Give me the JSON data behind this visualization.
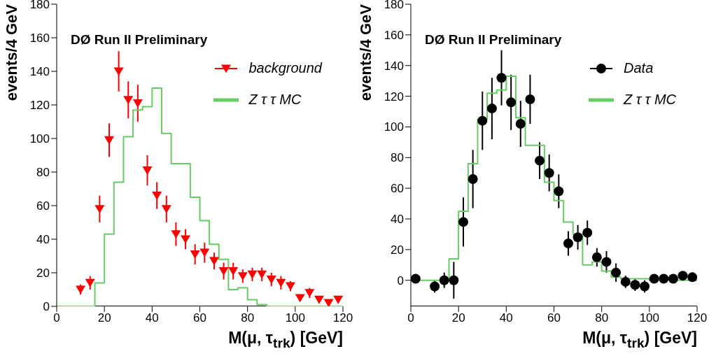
{
  "chart_data": [
    {
      "type": "scatter",
      "annotations": [
        "DØ Run II Preliminary"
      ],
      "xlabel": "M(μ, τ$_{trk}$) [GeV]",
      "ylabel": "events/4 GeV",
      "xlim": [
        0,
        120
      ],
      "xticks": [
        0,
        20,
        40,
        60,
        80,
        100,
        120
      ],
      "ylim": [
        0,
        180
      ],
      "yticks": [
        0,
        20,
        40,
        60,
        80,
        100,
        120,
        140,
        160,
        180
      ],
      "legend": "top right",
      "series": [
        {
          "name": "background",
          "type": "scatter",
          "marker": "triangle",
          "color": "#ff0000",
          "x": [
            10,
            14,
            18,
            22,
            26,
            30,
            34,
            38,
            42,
            46,
            50,
            54,
            58,
            62,
            66,
            70,
            74,
            78,
            82,
            86,
            90,
            94,
            98,
            102,
            106,
            110,
            114,
            118
          ],
          "values": [
            10,
            14,
            58,
            99,
            140,
            123,
            121,
            81,
            66,
            58,
            43,
            40,
            31,
            32,
            27,
            21,
            21,
            18,
            19,
            19,
            16,
            14,
            12,
            5,
            8,
            4,
            2,
            4
          ],
          "errors": [
            3,
            4,
            8,
            10,
            12,
            11,
            11,
            9,
            8,
            8,
            7,
            6,
            6,
            6,
            5,
            5,
            5,
            4,
            4,
            4,
            4,
            4,
            3,
            2,
            3,
            2,
            2,
            2
          ]
        },
        {
          "name": "Z τ τ MC",
          "type": "step",
          "line_style": "solid",
          "color": "#66cc66",
          "x": [
            0,
            4,
            8,
            12,
            16,
            20,
            24,
            28,
            32,
            36,
            40,
            44,
            48,
            52,
            56,
            60,
            64,
            68,
            72,
            76,
            80,
            84,
            88,
            92,
            96,
            100,
            104,
            108,
            112,
            116,
            120
          ],
          "values": [
            0,
            0,
            0,
            0,
            14,
            43,
            74,
            101,
            117,
            119,
            130,
            103,
            85,
            85,
            65,
            51,
            37,
            28,
            10,
            11,
            4,
            1,
            0,
            0,
            0,
            0,
            0,
            0,
            0,
            0,
            0
          ]
        }
      ]
    },
    {
      "type": "scatter",
      "annotations": [
        "DØ Run II Preliminary"
      ],
      "xlabel": "M(μ, τ$_{trk}$) [GeV]",
      "ylabel": "events/4 GeV",
      "xlim": [
        0,
        120
      ],
      "xticks": [
        0,
        20,
        40,
        60,
        80,
        100,
        120
      ],
      "ylim": [
        -17,
        180
      ],
      "yticks": [
        0,
        20,
        40,
        60,
        80,
        100,
        120,
        140,
        160,
        180
      ],
      "legend": "top right",
      "series": [
        {
          "name": "Data",
          "type": "scatter",
          "marker": "circle",
          "color": "#000000",
          "x": [
            2,
            10,
            14,
            18,
            22,
            26,
            30,
            34,
            38,
            42,
            46,
            50,
            54,
            58,
            62,
            66,
            70,
            74,
            78,
            82,
            86,
            90,
            94,
            98,
            102,
            106,
            110,
            114,
            118
          ],
          "values": [
            1,
            -4,
            0,
            0,
            38,
            66,
            104,
            112,
            132,
            116,
            102,
            118,
            78,
            70,
            58,
            24,
            28,
            31,
            15,
            12,
            5,
            -1,
            -3,
            -4,
            1,
            1,
            1,
            3,
            2
          ],
          "errors": [
            3,
            4,
            5,
            12,
            16,
            19,
            19,
            20,
            18,
            18,
            15,
            16,
            12,
            12,
            11,
            8,
            8,
            8,
            6,
            7,
            6,
            4,
            4,
            4,
            2,
            2,
            2,
            2,
            2
          ]
        },
        {
          "name": "Z τ τ MC",
          "type": "step",
          "line_style": "solid",
          "color": "#66cc66",
          "x": [
            0,
            4,
            8,
            12,
            16,
            20,
            24,
            28,
            32,
            36,
            40,
            44,
            48,
            52,
            56,
            60,
            64,
            68,
            72,
            76,
            80,
            84,
            88,
            92,
            96,
            100,
            104,
            108,
            112,
            116,
            120
          ],
          "values": [
            0,
            0,
            0,
            0,
            14,
            45,
            76,
            105,
            122,
            124,
            133,
            106,
            88,
            88,
            64,
            52,
            38,
            30,
            10,
            12,
            6,
            2,
            1,
            1,
            1,
            0,
            0,
            0,
            0,
            0,
            0
          ]
        }
      ]
    }
  ]
}
